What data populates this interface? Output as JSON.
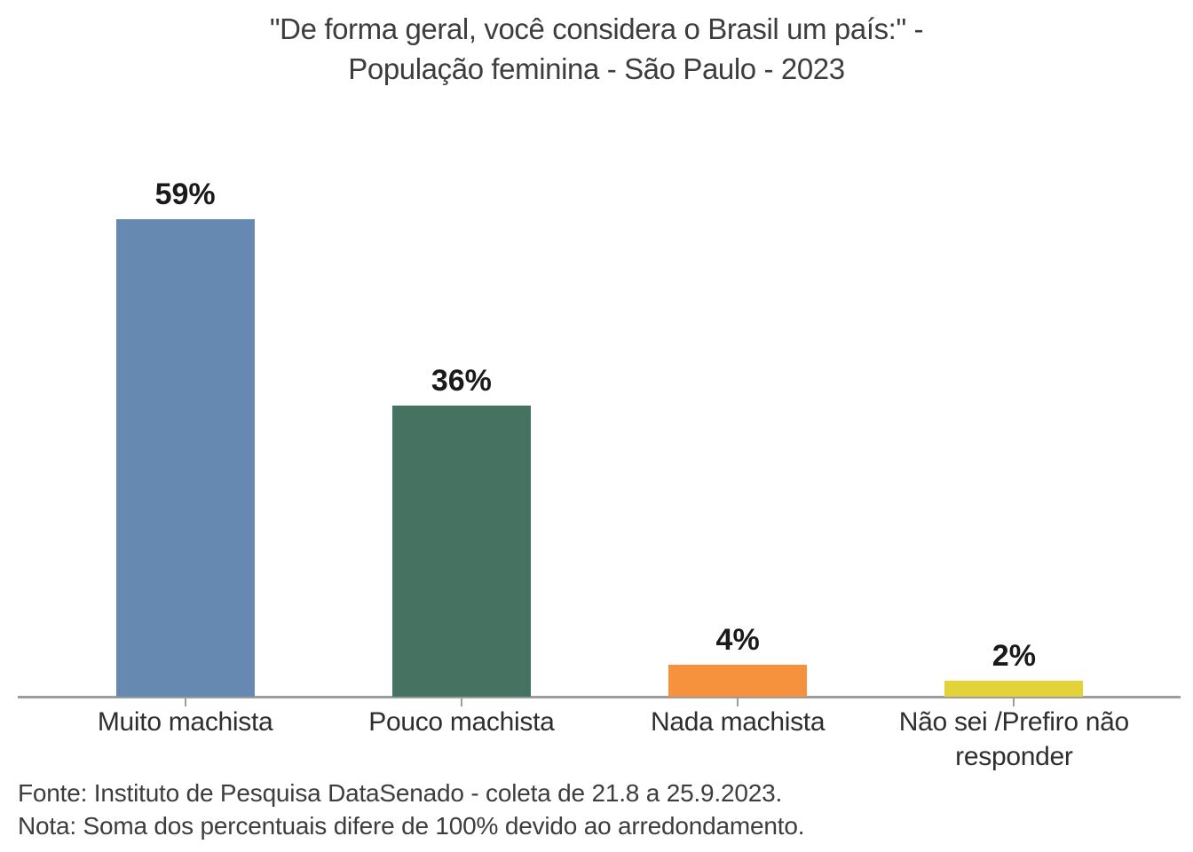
{
  "chart_data": {
    "type": "bar",
    "title": "\"De forma geral, você considera o Brasil um país:\" - População feminina - São Paulo - 2023",
    "title_lines": [
      "\"De forma geral, você considera o Brasil um país:\" -",
      "População feminina - São Paulo - 2023"
    ],
    "categories": [
      "Muito machista",
      "Pouco machista",
      "Nada machista",
      "Não sei /Prefiro não responder"
    ],
    "values": [
      59,
      36,
      4,
      2
    ],
    "value_labels": [
      "59%",
      "36%",
      "4%",
      "2%"
    ],
    "bar_colors": [
      "#6589b1",
      "#467361",
      "#f6913d",
      "#e3d338"
    ],
    "xlabel": "",
    "ylabel": "",
    "ylim": [
      0,
      65
    ],
    "grid": false,
    "legend": "none",
    "axis_color": "#9d9d9d",
    "title_color": "#3d3d3d",
    "category_label_color": "#2e2e2e",
    "value_label_color": "#1a1a1a",
    "notes": {
      "fonte": "Fonte: Instituto de Pesquisa DataSenado - coleta de 21.8 a 25.9.2023.",
      "nota": "Nota: Soma dos percentuais difere de 100% devido ao arredondamento."
    }
  }
}
